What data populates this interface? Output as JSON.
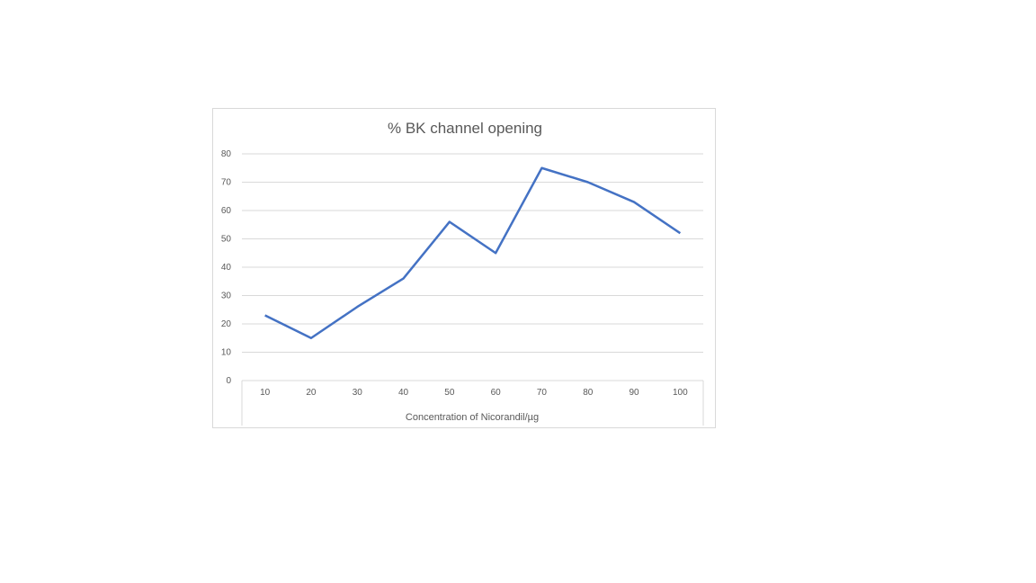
{
  "chart_data": {
    "type": "line",
    "title": "% BK channel opening",
    "xlabel": "Concentration of Nicorandil/µg",
    "ylabel": "",
    "categories": [
      "10",
      "20",
      "30",
      "40",
      "50",
      "60",
      "70",
      "80",
      "90",
      "100"
    ],
    "series": [
      {
        "values": [
          23,
          15,
          26,
          36,
          56,
          45,
          75,
          70,
          63,
          52
        ]
      }
    ],
    "ylim": [
      0,
      80
    ],
    "yticks": [
      0,
      10,
      20,
      30,
      40,
      50,
      60,
      70,
      80
    ],
    "grid": true,
    "legend": "none",
    "line_color": "#4472c4"
  }
}
